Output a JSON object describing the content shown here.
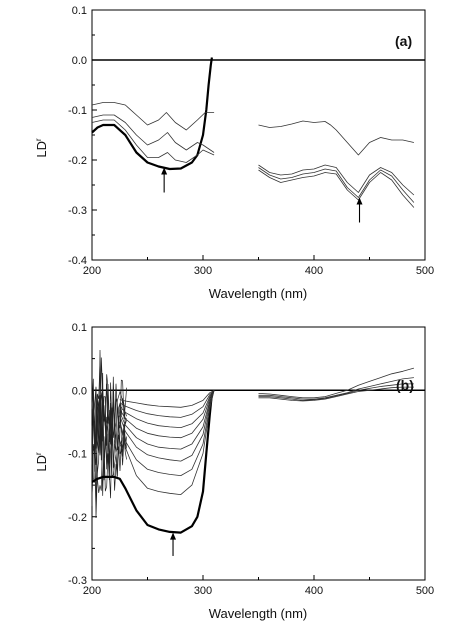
{
  "chart_data": [
    {
      "type": "line",
      "panel_label": "(a)",
      "xlabel": "Wavelength (nm)",
      "ylabel": "LD",
      "ylabel_superscript": "r",
      "xlim": [
        200,
        500
      ],
      "ylim": [
        -0.4,
        0.1
      ],
      "xticks": [
        200,
        300,
        400,
        500
      ],
      "yticks": [
        0.1,
        0.0,
        -0.1,
        -0.2,
        -0.3,
        -0.4
      ],
      "ytick_labels": [
        "0.1",
        "0.0",
        "-0.1",
        "-0.2",
        "-0.3",
        "-0.4"
      ],
      "zero_line": true,
      "arrows": [
        {
          "x": 265,
          "y_tip": -0.215,
          "y_tail": -0.265
        },
        {
          "x": 441,
          "y_tip": -0.275,
          "y_tail": -0.325
        }
      ],
      "series": [
        {
          "style": "thick",
          "x": [
            200,
            205,
            210,
            220,
            230,
            240,
            250,
            260,
            270,
            280,
            290,
            295,
            300,
            303,
            305,
            307,
            308
          ],
          "y": [
            -0.145,
            -0.135,
            -0.13,
            -0.13,
            -0.15,
            -0.185,
            -0.205,
            -0.213,
            -0.218,
            -0.217,
            -0.205,
            -0.19,
            -0.15,
            -0.1,
            -0.05,
            -0.01,
            0.005
          ]
        },
        {
          "style": "thin",
          "x": [
            200,
            210,
            220,
            230,
            240,
            250,
            260,
            267,
            275,
            285,
            295,
            302,
            310
          ],
          "y": [
            -0.09,
            -0.085,
            -0.085,
            -0.09,
            -0.11,
            -0.13,
            -0.12,
            -0.105,
            -0.125,
            -0.14,
            -0.12,
            -0.105,
            -0.105
          ]
        },
        {
          "style": "thin",
          "x": [
            200,
            210,
            220,
            230,
            240,
            250,
            260,
            268,
            275,
            285,
            295,
            300,
            310
          ],
          "y": [
            -0.115,
            -0.11,
            -0.11,
            -0.125,
            -0.15,
            -0.17,
            -0.16,
            -0.145,
            -0.165,
            -0.18,
            -0.165,
            -0.17,
            -0.185
          ]
        },
        {
          "style": "thin",
          "x": [
            200,
            210,
            220,
            230,
            240,
            250,
            260,
            268,
            275,
            285,
            295,
            300,
            310
          ],
          "y": [
            -0.125,
            -0.12,
            -0.12,
            -0.14,
            -0.17,
            -0.195,
            -0.195,
            -0.185,
            -0.2,
            -0.205,
            -0.19,
            -0.18,
            -0.19
          ]
        },
        {
          "style": "thin",
          "x": [
            350,
            360,
            370,
            380,
            390,
            400,
            410,
            415,
            420,
            430,
            440,
            450,
            460,
            470,
            480,
            490
          ],
          "y": [
            -0.13,
            -0.135,
            -0.133,
            -0.128,
            -0.122,
            -0.125,
            -0.123,
            -0.13,
            -0.14,
            -0.165,
            -0.19,
            -0.165,
            -0.155,
            -0.16,
            -0.16,
            -0.165
          ]
        },
        {
          "style": "thin",
          "x": [
            350,
            360,
            370,
            380,
            390,
            400,
            410,
            420,
            430,
            440,
            450,
            460,
            470,
            480,
            490
          ],
          "y": [
            -0.21,
            -0.225,
            -0.23,
            -0.228,
            -0.22,
            -0.218,
            -0.21,
            -0.215,
            -0.245,
            -0.265,
            -0.23,
            -0.215,
            -0.225,
            -0.25,
            -0.27
          ]
        },
        {
          "style": "thin",
          "x": [
            350,
            360,
            370,
            380,
            390,
            400,
            410,
            420,
            430,
            440,
            450,
            460,
            470,
            480,
            490
          ],
          "y": [
            -0.215,
            -0.23,
            -0.238,
            -0.235,
            -0.228,
            -0.225,
            -0.218,
            -0.222,
            -0.255,
            -0.275,
            -0.24,
            -0.22,
            -0.232,
            -0.26,
            -0.285
          ]
        },
        {
          "style": "thin",
          "x": [
            350,
            360,
            370,
            380,
            390,
            400,
            410,
            420,
            430,
            440,
            450,
            460,
            470,
            480,
            490
          ],
          "y": [
            -0.22,
            -0.235,
            -0.245,
            -0.24,
            -0.235,
            -0.232,
            -0.225,
            -0.228,
            -0.26,
            -0.28,
            -0.245,
            -0.225,
            -0.24,
            -0.27,
            -0.295
          ]
        }
      ]
    },
    {
      "type": "line",
      "panel_label": "(b)",
      "xlabel": "Wavelength (nm)",
      "ylabel": "LD",
      "ylabel_superscript": "r",
      "xlim": [
        200,
        500
      ],
      "ylim": [
        -0.3,
        0.1
      ],
      "xticks": [
        200,
        300,
        400,
        500
      ],
      "yticks": [
        0.1,
        0.0,
        -0.1,
        -0.2,
        -0.3
      ],
      "ytick_labels": [
        "0.1",
        "0.0",
        "-0.1",
        "-0.2",
        "-0.3"
      ],
      "zero_line": true,
      "arrows": [
        {
          "x": 273,
          "y_tip": -0.225,
          "y_tail": -0.262
        }
      ],
      "noise": {
        "x_start": 200,
        "x_end": 232,
        "traces": 8,
        "amplitude": 0.12
      },
      "series": [
        {
          "style": "thick",
          "x": [
            200,
            205,
            210,
            220,
            225,
            230,
            240,
            250,
            260,
            270,
            280,
            290,
            295,
            300,
            303,
            306,
            308
          ],
          "y": [
            -0.145,
            -0.14,
            -0.137,
            -0.137,
            -0.14,
            -0.155,
            -0.19,
            -0.213,
            -0.22,
            -0.224,
            -0.225,
            -0.215,
            -0.2,
            -0.16,
            -0.1,
            -0.04,
            -0.005
          ]
        },
        {
          "style": "thin",
          "x": [
            225,
            230,
            240,
            250,
            260,
            270,
            280,
            290,
            300,
            306,
            310
          ],
          "y": [
            -0.05,
            -0.09,
            -0.135,
            -0.155,
            -0.16,
            -0.163,
            -0.165,
            -0.15,
            -0.1,
            -0.03,
            0.0
          ]
        },
        {
          "style": "thin",
          "x": [
            225,
            230,
            240,
            250,
            260,
            270,
            280,
            290,
            300,
            306,
            310
          ],
          "y": [
            -0.05,
            -0.08,
            -0.11,
            -0.125,
            -0.13,
            -0.133,
            -0.135,
            -0.125,
            -0.085,
            -0.025,
            0.0
          ]
        },
        {
          "style": "thin",
          "x": [
            225,
            230,
            240,
            250,
            260,
            270,
            280,
            290,
            300,
            306,
            310
          ],
          "y": [
            -0.04,
            -0.065,
            -0.09,
            -0.102,
            -0.107,
            -0.11,
            -0.112,
            -0.103,
            -0.07,
            -0.02,
            0.0
          ]
        },
        {
          "style": "thin",
          "x": [
            225,
            230,
            240,
            250,
            260,
            270,
            280,
            290,
            300,
            306,
            310
          ],
          "y": [
            -0.035,
            -0.055,
            -0.075,
            -0.085,
            -0.09,
            -0.092,
            -0.093,
            -0.085,
            -0.058,
            -0.017,
            0.0
          ]
        },
        {
          "style": "thin",
          "x": [
            225,
            230,
            240,
            250,
            260,
            270,
            280,
            290,
            300,
            306,
            310
          ],
          "y": [
            -0.03,
            -0.045,
            -0.06,
            -0.068,
            -0.072,
            -0.074,
            -0.075,
            -0.068,
            -0.046,
            -0.013,
            0.0
          ]
        },
        {
          "style": "thin",
          "x": [
            225,
            230,
            240,
            250,
            260,
            270,
            280,
            290,
            300,
            306,
            310
          ],
          "y": [
            -0.025,
            -0.035,
            -0.045,
            -0.052,
            -0.056,
            -0.058,
            -0.059,
            -0.053,
            -0.036,
            -0.01,
            0.0
          ]
        },
        {
          "style": "thin",
          "x": [
            225,
            230,
            240,
            250,
            260,
            270,
            280,
            290,
            300,
            306,
            310
          ],
          "y": [
            -0.02,
            -0.025,
            -0.032,
            -0.037,
            -0.04,
            -0.042,
            -0.043,
            -0.038,
            -0.026,
            -0.007,
            0.0
          ]
        },
        {
          "style": "thin",
          "x": [
            225,
            230,
            240,
            250,
            260,
            270,
            280,
            290,
            300,
            306,
            310
          ],
          "y": [
            -0.015,
            -0.017,
            -0.02,
            -0.023,
            -0.025,
            -0.026,
            -0.027,
            -0.024,
            -0.016,
            -0.004,
            0.0
          ]
        },
        {
          "style": "thin",
          "x": [
            350,
            360,
            370,
            380,
            390,
            400,
            410,
            420,
            430,
            440,
            450,
            460,
            470,
            480,
            490
          ],
          "y": [
            -0.005,
            -0.006,
            -0.008,
            -0.01,
            -0.012,
            -0.012,
            -0.01,
            -0.005,
            0.0,
            0.008,
            0.014,
            0.02,
            0.026,
            0.03,
            0.035
          ]
        },
        {
          "style": "thin",
          "x": [
            350,
            360,
            370,
            380,
            390,
            400,
            410,
            420,
            430,
            440,
            450,
            460,
            470,
            480,
            490
          ],
          "y": [
            -0.008,
            -0.008,
            -0.01,
            -0.012,
            -0.014,
            -0.014,
            -0.012,
            -0.008,
            -0.004,
            0.002,
            0.006,
            0.01,
            0.014,
            0.018,
            0.02
          ]
        },
        {
          "style": "thin",
          "x": [
            350,
            360,
            370,
            380,
            390,
            400,
            410,
            420,
            430,
            440,
            450,
            460,
            470,
            480,
            490
          ],
          "y": [
            -0.01,
            -0.01,
            -0.012,
            -0.014,
            -0.016,
            -0.015,
            -0.013,
            -0.009,
            -0.005,
            0.0,
            0.003,
            0.006,
            0.008,
            0.01,
            0.01
          ]
        },
        {
          "style": "thin",
          "x": [
            350,
            360,
            370,
            380,
            390,
            400,
            410,
            420,
            430,
            440,
            450,
            460,
            470,
            480,
            490
          ],
          "y": [
            -0.012,
            -0.012,
            -0.014,
            -0.016,
            -0.017,
            -0.016,
            -0.014,
            -0.01,
            -0.006,
            -0.002,
            0.0,
            0.002,
            0.004,
            0.005,
            0.005
          ]
        }
      ]
    }
  ]
}
